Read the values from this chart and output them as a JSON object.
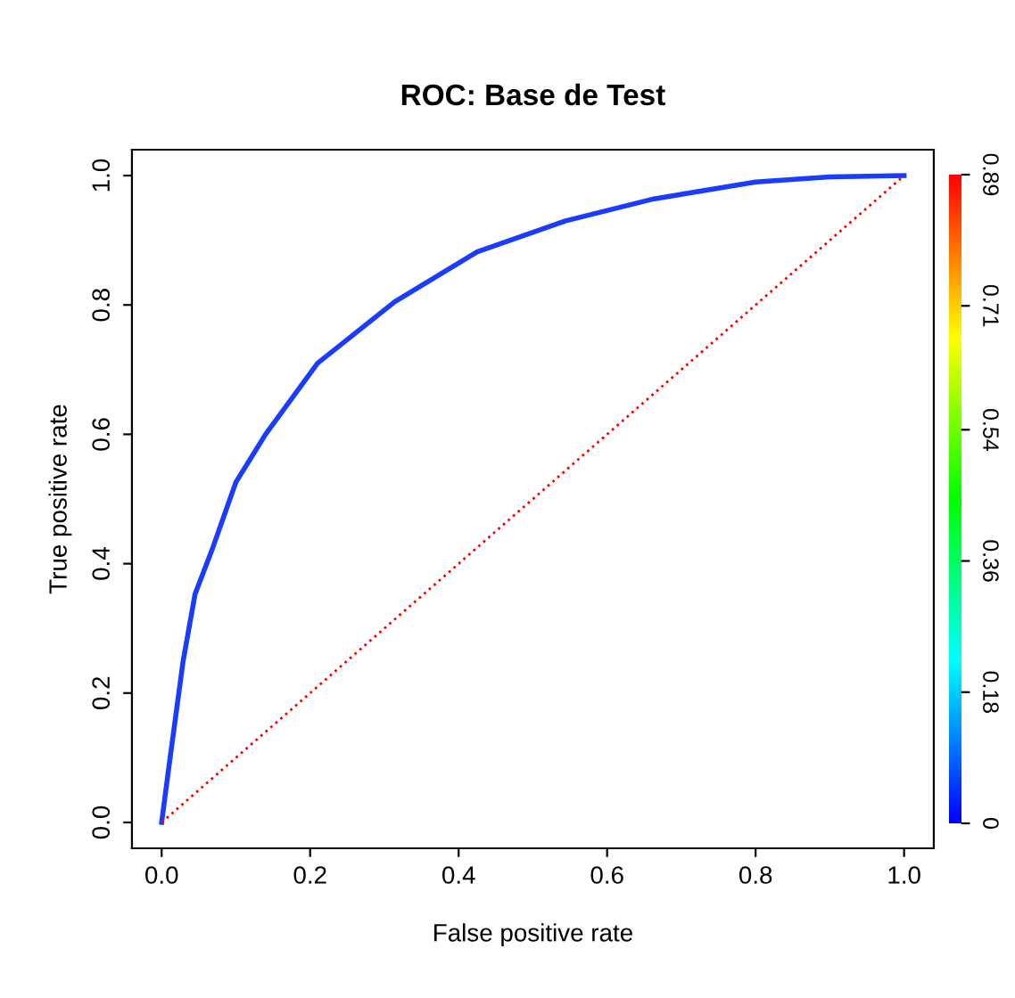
{
  "chart_data": {
    "type": "line",
    "title": "ROC: Base de Test",
    "xlabel": "False positive rate",
    "ylabel": "True positive rate",
    "series": [
      {
        "x": [
          0,
          0.01,
          0.029,
          0.045,
          0.069,
          0.1,
          0.14,
          0.21,
          0.314,
          0.425,
          0.544,
          0.663,
          0.8,
          0.9,
          1.0
        ],
        "values": [
          0,
          0.088,
          0.25,
          0.353,
          0.425,
          0.526,
          0.6,
          0.71,
          0.805,
          0.882,
          0.93,
          0.964,
          0.99,
          0.998,
          1.0
        ],
        "color": "#1a3cff",
        "line_style": "solid"
      },
      {
        "x": [
          0,
          1
        ],
        "values": [
          0,
          1
        ],
        "color": "#ff0000",
        "line_style": "dotted"
      }
    ],
    "xlim": [
      -0.04,
      1.04
    ],
    "ylim": [
      -0.04,
      1.04
    ],
    "xticks": [
      {
        "value": 0,
        "label": "0.0"
      },
      {
        "value": 0.2,
        "label": "0.2"
      },
      {
        "value": 0.4,
        "label": "0.4"
      },
      {
        "value": 0.6,
        "label": "0.6"
      },
      {
        "value": 0.8,
        "label": "0.8"
      },
      {
        "value": 1.0,
        "label": "1.0"
      }
    ],
    "yticks": [
      {
        "value": 0,
        "label": "0.0"
      },
      {
        "value": 0.2,
        "label": "0.2"
      },
      {
        "value": 0.4,
        "label": "0.4"
      },
      {
        "value": 0.6,
        "label": "0.6"
      },
      {
        "value": 0.8,
        "label": "0.8"
      },
      {
        "value": 1.0,
        "label": "1.0"
      }
    ],
    "clim": [
      0,
      0.89
    ],
    "cticks": [
      0,
      0.18,
      0.36,
      0.54,
      0.71,
      0.89
    ],
    "grid": false,
    "legend": false
  }
}
